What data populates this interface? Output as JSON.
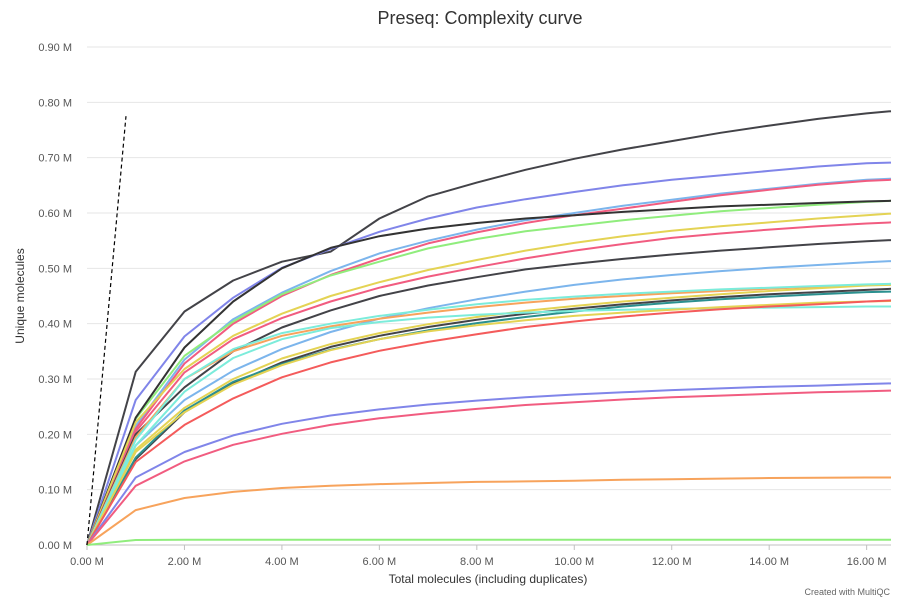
{
  "chart_data": {
    "type": "line",
    "title": "Preseq: Complexity curve",
    "xlabel": "Total molecules (including duplicates)",
    "ylabel": "Unique molecules",
    "xlim": [
      0,
      16500000
    ],
    "ylim": [
      0,
      900000
    ],
    "x_ticks": [
      0,
      2000000,
      4000000,
      6000000,
      8000000,
      10000000,
      12000000,
      14000000,
      16000000
    ],
    "x_tick_labels": [
      "0.00 M",
      "2.00 M",
      "4.00 M",
      "6.00 M",
      "8.00 M",
      "10.00 M",
      "12.00 M",
      "14.00 M",
      "16.00 M"
    ],
    "y_ticks": [
      0,
      100000,
      200000,
      300000,
      400000,
      500000,
      600000,
      700000,
      800000,
      900000
    ],
    "y_tick_labels": [
      "0.00 M",
      "0.10 M",
      "0.20 M",
      "0.30 M",
      "0.40 M",
      "0.50 M",
      "0.60 M",
      "0.70 M",
      "0.80 M",
      "0.90 M"
    ],
    "grid": true,
    "x": [
      0,
      1000000,
      2000000,
      3000000,
      4000000,
      5000000,
      6000000,
      7000000,
      8000000,
      9000000,
      10000000,
      11000000,
      12000000,
      13000000,
      14000000,
      15000000,
      16000000,
      16500000
    ],
    "reference_line": {
      "style": "dashed",
      "x": [
        0,
        800000
      ],
      "y": [
        0,
        775000
      ]
    },
    "series": [
      {
        "color": "#434348",
        "values": [
          0,
          313000,
          422000,
          478000,
          512000,
          530000,
          590000,
          630000,
          655000,
          678000,
          698000,
          715000,
          730000,
          745000,
          758000,
          770000,
          780000,
          784000
        ]
      },
      {
        "color": "#8085e9",
        "values": [
          0,
          262000,
          377000,
          447000,
          501000,
          535000,
          566000,
          590000,
          610000,
          625000,
          638000,
          650000,
          660000,
          668000,
          676000,
          684000,
          690000,
          691000
        ]
      },
      {
        "color": "#7cb5ec",
        "values": [
          0,
          215000,
          335000,
          408000,
          456000,
          495000,
          527000,
          550000,
          570000,
          587000,
          600000,
          613000,
          624000,
          635000,
          644000,
          653000,
          660000,
          662000
        ]
      },
      {
        "color": "#f15c80",
        "values": [
          0,
          210000,
          328000,
          400000,
          450000,
          488000,
          518000,
          545000,
          565000,
          582000,
          596000,
          608000,
          620000,
          632000,
          642000,
          651000,
          658000,
          660000
        ]
      },
      {
        "color": "#90ed7d",
        "values": [
          0,
          228000,
          342000,
          404000,
          453000,
          487000,
          512000,
          536000,
          553000,
          567000,
          577000,
          587000,
          595000,
          603000,
          609000,
          615000,
          620000,
          622000
        ]
      },
      {
        "color": "#333333",
        "values": [
          0,
          230000,
          357000,
          440000,
          500000,
          537000,
          558000,
          572000,
          582000,
          590000,
          596000,
          602000,
          607000,
          612000,
          615000,
          618000,
          621000,
          622000
        ]
      },
      {
        "color": "#e4d354",
        "values": [
          0,
          222000,
          318000,
          378000,
          418000,
          450000,
          475000,
          497000,
          515000,
          532000,
          546000,
          558000,
          568000,
          576000,
          583000,
          590000,
          596000,
          599000
        ]
      },
      {
        "color": "#f15c80",
        "values": [
          0,
          205000,
          312000,
          372000,
          410000,
          440000,
          465000,
          485000,
          502000,
          518000,
          532000,
          544000,
          555000,
          563000,
          570000,
          576000,
          581000,
          583000
        ]
      },
      {
        "color": "#434348",
        "values": [
          0,
          200000,
          285000,
          350000,
          393000,
          424000,
          450000,
          469000,
          484000,
          498000,
          508000,
          517000,
          525000,
          532000,
          538000,
          544000,
          549000,
          551000
        ]
      },
      {
        "color": "#7cb5ec",
        "values": [
          0,
          180000,
          262000,
          315000,
          354000,
          385000,
          409000,
          428000,
          444000,
          458000,
          470000,
          480000,
          488000,
          495000,
          501000,
          506000,
          511000,
          513000
        ]
      },
      {
        "color": "#f7a35c",
        "values": [
          0,
          195000,
          300000,
          350000,
          378000,
          395000,
          409000,
          420000,
          430000,
          438000,
          445000,
          450000,
          455000,
          459000,
          463000,
          467000,
          470000,
          471000
        ]
      },
      {
        "color": "#e4d354",
        "values": [
          0,
          172000,
          248000,
          300000,
          337000,
          363000,
          383000,
          399000,
          412000,
          423000,
          432000,
          440000,
          447000,
          453000,
          459000,
          464000,
          469000,
          470000
        ]
      },
      {
        "color": "#7cecdb",
        "values": [
          0,
          190000,
          300000,
          354000,
          383000,
          400000,
          414000,
          425000,
          435000,
          443000,
          449000,
          454000,
          458000,
          462000,
          465000,
          468000,
          471000,
          472000
        ]
      },
      {
        "color": "#434348",
        "values": [
          0,
          155000,
          240000,
          292000,
          330000,
          358000,
          378000,
          394000,
          407000,
          418000,
          427000,
          435000,
          442000,
          448000,
          453000,
          457000,
          461000,
          463000
        ]
      },
      {
        "color": "#2b908f",
        "values": [
          0,
          158000,
          243000,
          295000,
          327000,
          353000,
          372000,
          388000,
          401000,
          412000,
          422000,
          431000,
          438000,
          444000,
          449000,
          453000,
          457000,
          458000
        ]
      },
      {
        "color": "#7cecdb",
        "values": [
          0,
          180000,
          277000,
          338000,
          372000,
          392000,
          403000,
          411000,
          416000,
          420000,
          423000,
          425000,
          427000,
          428000,
          429000,
          430000,
          431000,
          431000
        ]
      },
      {
        "color": "#e4d354",
        "values": [
          0,
          168000,
          240000,
          290000,
          325000,
          352000,
          372000,
          386000,
          397000,
          406000,
          414000,
          420000,
          425000,
          430000,
          434000,
          438000,
          440000,
          441000
        ]
      },
      {
        "color": "#f45b5b",
        "values": [
          0,
          150000,
          217000,
          265000,
          303000,
          330000,
          351000,
          367000,
          381000,
          394000,
          404000,
          413000,
          420000,
          426000,
          431000,
          435000,
          440000,
          442000
        ]
      },
      {
        "color": "#8085e9",
        "values": [
          0,
          122000,
          168000,
          198000,
          219000,
          234000,
          245000,
          254000,
          261000,
          267000,
          272000,
          276000,
          280000,
          283000,
          286000,
          288000,
          291000,
          292000
        ]
      },
      {
        "color": "#f15c80",
        "values": [
          0,
          107000,
          151000,
          181000,
          201000,
          217000,
          229000,
          238000,
          246000,
          253000,
          258000,
          263000,
          267000,
          270000,
          273000,
          276000,
          278000,
          279000
        ]
      },
      {
        "color": "#f7a35c",
        "values": [
          0,
          63000,
          85000,
          96000,
          103000,
          107000,
          110000,
          112000,
          114000,
          115000,
          116000,
          118000,
          119000,
          120000,
          121000,
          121500,
          122000,
          122000
        ]
      },
      {
        "color": "#90ed7d",
        "values": [
          0,
          9000,
          9500,
          9600,
          9600,
          9600,
          9600,
          9600,
          9600,
          9600,
          9600,
          9600,
          9600,
          9600,
          9600,
          9600,
          9600,
          9600
        ]
      }
    ],
    "credit": "Created with MultiQC"
  }
}
